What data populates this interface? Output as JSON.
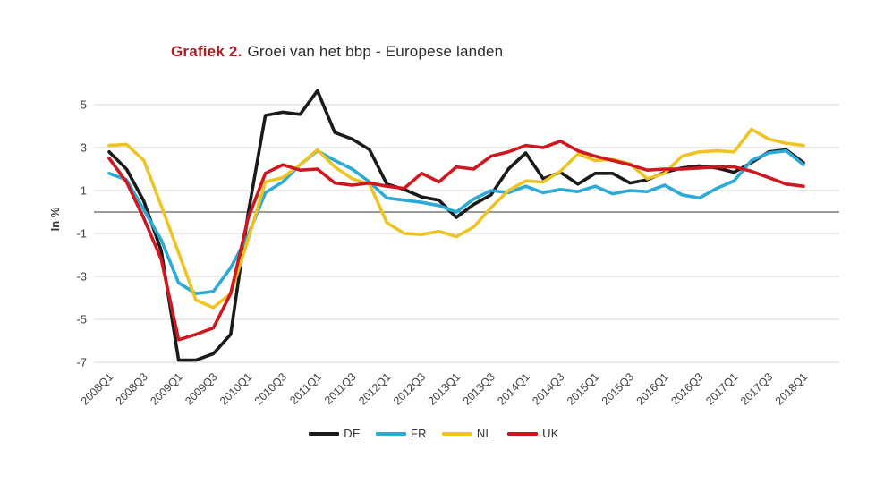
{
  "title": {
    "prefix": "Grafiek 2.",
    "text": "Groei van het bbp - Europese landen"
  },
  "colors": {
    "background": "#ffffff",
    "title_prefix": "#A81C22",
    "title_text": "#2B2B2B",
    "grid_line": "#DCDCDC",
    "zero_line": "#8C8C8C",
    "tick_label": "#404040"
  },
  "chart_data": {
    "type": "line",
    "title": "Grafiek 2. Groei van het bbp - Europese landen",
    "xlabel": "",
    "ylabel": "In %",
    "x_start": "2008Q1",
    "x_end": "2018Q1",
    "frequency": "quarterly",
    "n_points": 41,
    "ylim": [
      -7.6,
      6.0
    ],
    "grid": "horizontal",
    "legend_position": "bottom",
    "y_ticks": [
      5,
      3,
      1,
      -1,
      -3,
      -5,
      -7
    ],
    "x_tick_labels": [
      "2008Q1",
      "2008Q3",
      "2009Q1",
      "2009Q3",
      "2010Q1",
      "2010Q3",
      "2011Q1",
      "2011Q3",
      "2012Q1",
      "2012Q3",
      "2013Q1",
      "2013Q3",
      "2014Q1",
      "2014Q3",
      "2015Q1",
      "2015Q3",
      "2016Q1",
      "2016Q3",
      "2017Q1",
      "2017Q3",
      "2018Q1"
    ],
    "series": [
      {
        "name": "DE",
        "color": "#1A1A1A",
        "values": [
          2.8,
          2.0,
          0.5,
          -1.8,
          -6.9,
          -6.9,
          -6.6,
          -5.7,
          -0.1,
          4.5,
          4.65,
          4.55,
          5.65,
          3.7,
          3.4,
          2.9,
          1.3,
          1.05,
          0.7,
          0.55,
          -0.25,
          0.35,
          0.8,
          2.0,
          2.75,
          1.55,
          1.85,
          1.3,
          1.8,
          1.8,
          1.35,
          1.5,
          1.85,
          2.05,
          2.15,
          2.05,
          1.85,
          2.3,
          2.8,
          2.9,
          2.3
        ]
      },
      {
        "name": "FR",
        "color": "#2BAAD6",
        "values": [
          1.8,
          1.5,
          0.1,
          -1.3,
          -3.3,
          -3.8,
          -3.7,
          -2.6,
          -1.1,
          0.9,
          1.4,
          2.2,
          2.85,
          2.4,
          2.0,
          1.4,
          0.65,
          0.55,
          0.45,
          0.3,
          0.0,
          0.6,
          1.0,
          0.9,
          1.2,
          0.9,
          1.05,
          0.95,
          1.2,
          0.85,
          1.0,
          0.95,
          1.25,
          0.8,
          0.65,
          1.1,
          1.45,
          2.4,
          2.75,
          2.85,
          2.2
        ]
      },
      {
        "name": "NL",
        "color": "#EEC424",
        "values": [
          3.1,
          3.15,
          2.4,
          0.3,
          -1.9,
          -4.1,
          -4.45,
          -3.8,
          -1.3,
          1.4,
          1.6,
          2.2,
          2.9,
          2.1,
          1.55,
          1.3,
          -0.5,
          -1.0,
          -1.05,
          -0.9,
          -1.15,
          -0.7,
          0.2,
          1.0,
          1.45,
          1.4,
          1.9,
          2.7,
          2.4,
          2.45,
          2.25,
          1.55,
          1.8,
          2.6,
          2.8,
          2.85,
          2.8,
          3.85,
          3.4,
          3.2,
          3.1
        ]
      },
      {
        "name": "UK",
        "color": "#CE171F",
        "values": [
          2.5,
          1.4,
          -0.3,
          -2.2,
          -5.95,
          -5.7,
          -5.4,
          -3.8,
          -0.3,
          1.8,
          2.2,
          1.95,
          2.0,
          1.35,
          1.25,
          1.35,
          1.2,
          1.1,
          1.8,
          1.4,
          2.1,
          2.0,
          2.6,
          2.8,
          3.1,
          3.0,
          3.3,
          2.85,
          2.6,
          2.4,
          2.2,
          1.95,
          2.0,
          2.0,
          2.05,
          2.1,
          2.1,
          1.9,
          1.6,
          1.3,
          1.2
        ]
      }
    ]
  }
}
